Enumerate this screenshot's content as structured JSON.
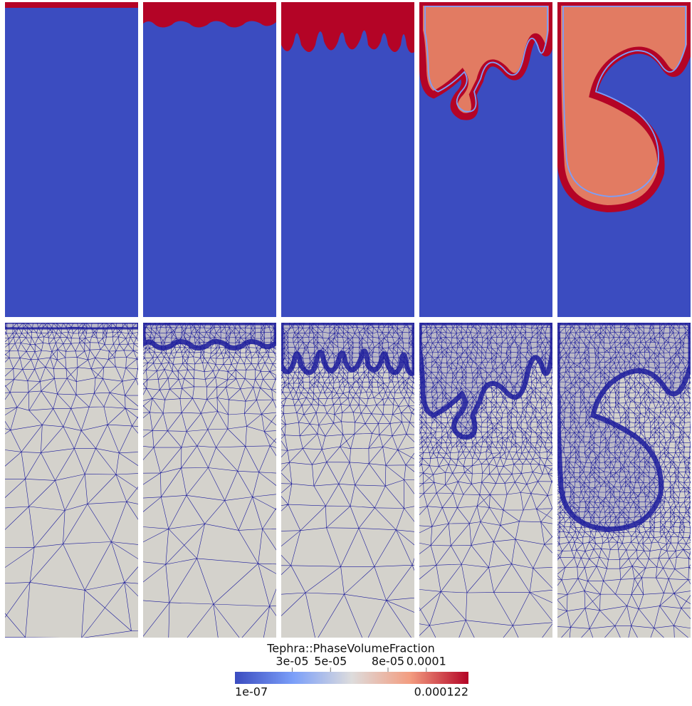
{
  "colorbar": {
    "title": "Tephra::PhaseVolumeFraction",
    "min": {
      "value": 1e-07,
      "label": "1e-07"
    },
    "max": {
      "value": 0.000122,
      "label": "0.000122"
    },
    "ticks": [
      {
        "value": 3e-05,
        "label": "3e-05"
      },
      {
        "value": 5e-05,
        "label": "5e-05"
      },
      {
        "value": 8e-05,
        "label": "8e-05"
      },
      {
        "value": 0.0001,
        "label": "0.0001"
      }
    ]
  }
}
